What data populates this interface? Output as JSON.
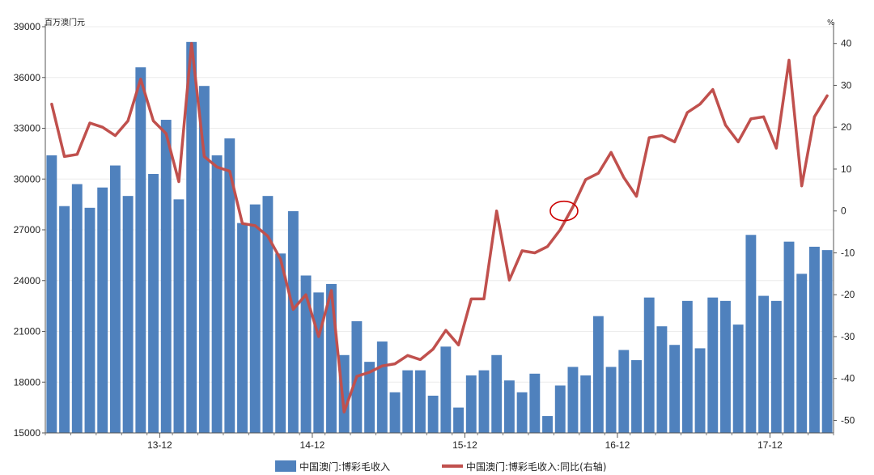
{
  "chart_data": {
    "type": "bar+line",
    "left_axis_unit": "百万澳门元",
    "right_axis_unit": "%",
    "left_ylim": [
      15000,
      39000
    ],
    "left_ticks": [
      15000,
      18000,
      21000,
      24000,
      27000,
      30000,
      33000,
      36000,
      39000
    ],
    "right_ylim": [
      -53,
      44
    ],
    "right_ticks": [
      -50,
      -40,
      -30,
      -20,
      -10,
      0,
      10,
      20,
      30,
      40
    ],
    "x_tick_labels": [
      {
        "label": "13-12",
        "index": 9
      },
      {
        "label": "14-12",
        "index": 21
      },
      {
        "label": "15-12",
        "index": 33
      },
      {
        "label": "16-12",
        "index": 45
      },
      {
        "label": "17-12",
        "index": 57
      }
    ],
    "series": [
      {
        "name": "中国澳门:博彩毛收入",
        "type": "bar",
        "color": "#4f81bd",
        "values": [
          31400,
          28400,
          29700,
          28300,
          29500,
          30800,
          29000,
          36600,
          30300,
          33500,
          28800,
          38100,
          35500,
          31400,
          32400,
          27400,
          28500,
          29000,
          25600,
          28100,
          24300,
          23300,
          23800,
          19600,
          21600,
          19200,
          20400,
          17400,
          18700,
          18700,
          17200,
          20100,
          16500,
          18400,
          18700,
          19600,
          18100,
          17400,
          18500,
          16000,
          17800,
          18900,
          18400,
          21900,
          18900,
          19900,
          19300,
          23000,
          21300,
          20200,
          22800,
          20000,
          23000,
          22800,
          21400,
          26700,
          23100,
          22800,
          26300,
          24400,
          26000,
          25800
        ]
      },
      {
        "name": "中国澳门:博彩毛收入:同比(右轴)",
        "type": "line",
        "color": "#c0504d",
        "values": [
          25.5,
          13,
          13.5,
          21,
          20,
          18,
          21.5,
          31.5,
          21.5,
          18.5,
          7,
          40,
          13,
          10.5,
          9.5,
          -3,
          -3.5,
          -6,
          -11.5,
          -23.5,
          -20,
          -30,
          -19,
          -48,
          -39.5,
          -38.5,
          -37,
          -36.5,
          -34.5,
          -35.5,
          -33,
          -28.5,
          -32,
          -21,
          -21,
          0,
          -16.5,
          -9.5,
          -10,
          -8.5,
          -4.5,
          1,
          7.5,
          9,
          14,
          8,
          3.5,
          17.5,
          18,
          16.5,
          23.5,
          25.5,
          29,
          20.5,
          16.5,
          22,
          22.5,
          15,
          36,
          6,
          22.5,
          27.5
        ]
      }
    ],
    "annotation": {
      "type": "ellipse",
      "color": "#cc0000"
    },
    "legend": {
      "placement": "bottom"
    }
  }
}
